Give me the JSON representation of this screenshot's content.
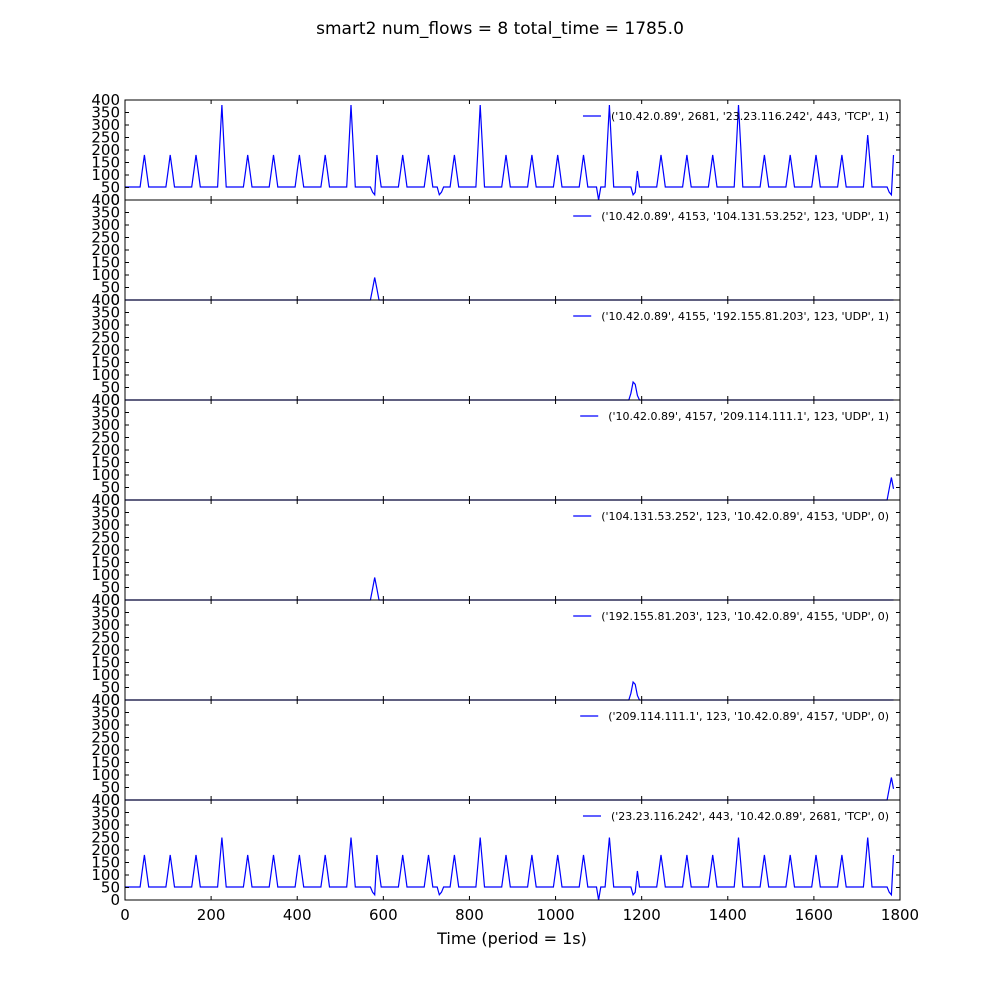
{
  "chart_data": {
    "type": "line",
    "title": "smart2 num_flows = 8 total_time = 1785.0",
    "xlabel": "Time (period = 1s)",
    "ylabel": "",
    "xlim": [
      0,
      1800
    ],
    "ylim": [
      0,
      400
    ],
    "x_ticks": [
      0,
      200,
      400,
      600,
      800,
      1000,
      1200,
      1400,
      1600,
      1800
    ],
    "y_ticks": [
      0,
      50,
      100,
      150,
      200,
      250,
      300,
      350,
      400
    ],
    "line_color": "#0000ff",
    "legend_placement": "upper right",
    "subplots": [
      {
        "name": "('10.42.0.89', 2681, '23.23.116.242', 443, 'TCP', 1)",
        "ymax": 400,
        "pattern": {
          "baseline": 52,
          "peaks": [
            [
              45,
              180
            ],
            [
              105,
              180
            ],
            [
              165,
              180
            ],
            [
              225,
              380
            ],
            [
              285,
              180
            ],
            [
              345,
              180
            ],
            [
              405,
              180
            ],
            [
              465,
              180
            ],
            [
              525,
              380
            ],
            [
              585,
              180
            ],
            [
              645,
              180
            ],
            [
              705,
              180
            ],
            [
              765,
              180
            ],
            [
              825,
              380
            ],
            [
              885,
              180
            ],
            [
              945,
              180
            ],
            [
              1005,
              180
            ],
            [
              1065,
              180
            ],
            [
              1125,
              380
            ],
            [
              1185,
              180
            ],
            [
              1245,
              180
            ],
            [
              1305,
              180
            ],
            [
              1365,
              180
            ],
            [
              1425,
              380
            ],
            [
              1485,
              180
            ],
            [
              1545,
              180
            ],
            [
              1605,
              180
            ],
            [
              1665,
              180
            ],
            [
              1725,
              260
            ],
            [
              1785,
              180
            ]
          ],
          "dips": [
            [
              578,
              0
            ],
            [
              732,
              0
            ],
            [
              1100,
              0
            ],
            [
              1182,
              0
            ],
            [
              1778,
              0
            ]
          ]
        }
      },
      {
        "name": "('10.42.0.89', 4153, '104.131.53.252', 123, 'UDP', 1)",
        "ymax": 400,
        "pattern": {
          "baseline": 0,
          "peaks": [
            [
              580,
              90
            ]
          ],
          "dips": []
        }
      },
      {
        "name": "('10.42.0.89', 4155, '192.155.81.203', 123, 'UDP', 1)",
        "ymax": 400,
        "pattern": {
          "baseline": 0,
          "peaks": [
            [
              1182,
              90
            ]
          ],
          "dips": []
        }
      },
      {
        "name": "('10.42.0.89', 4157, '209.114.111.1', 123, 'UDP', 1)",
        "ymax": 400,
        "pattern": {
          "baseline": 0,
          "peaks": [
            [
              1780,
              90
            ]
          ],
          "dips": []
        }
      },
      {
        "name": "('104.131.53.252', 123, '10.42.0.89', 4153, 'UDP', 0)",
        "ymax": 400,
        "pattern": {
          "baseline": 0,
          "peaks": [
            [
              580,
              90
            ]
          ],
          "dips": []
        }
      },
      {
        "name": "('192.155.81.203', 123, '10.42.0.89', 4155, 'UDP', 0)",
        "ymax": 400,
        "pattern": {
          "baseline": 0,
          "peaks": [
            [
              1182,
              90
            ]
          ],
          "dips": []
        }
      },
      {
        "name": "('209.114.111.1', 123, '10.42.0.89', 4157, 'UDP', 0)",
        "ymax": 400,
        "pattern": {
          "baseline": 0,
          "peaks": [
            [
              1780,
              90
            ]
          ],
          "dips": []
        }
      },
      {
        "name": "('23.23.116.242', 443, '10.42.0.89', 2681, 'TCP', 0)",
        "ymax": 400,
        "pattern": {
          "baseline": 52,
          "peaks": [
            [
              45,
              180
            ],
            [
              105,
              180
            ],
            [
              165,
              180
            ],
            [
              225,
              250
            ],
            [
              285,
              180
            ],
            [
              345,
              180
            ],
            [
              405,
              180
            ],
            [
              465,
              180
            ],
            [
              525,
              250
            ],
            [
              585,
              180
            ],
            [
              645,
              180
            ],
            [
              705,
              180
            ],
            [
              765,
              180
            ],
            [
              825,
              250
            ],
            [
              885,
              180
            ],
            [
              945,
              180
            ],
            [
              1005,
              180
            ],
            [
              1065,
              180
            ],
            [
              1125,
              250
            ],
            [
              1185,
              180
            ],
            [
              1245,
              180
            ],
            [
              1305,
              180
            ],
            [
              1365,
              180
            ],
            [
              1425,
              250
            ],
            [
              1485,
              180
            ],
            [
              1545,
              180
            ],
            [
              1605,
              180
            ],
            [
              1665,
              180
            ],
            [
              1725,
              250
            ],
            [
              1785,
              180
            ]
          ],
          "dips": [
            [
              578,
              0
            ],
            [
              732,
              0
            ],
            [
              1100,
              0
            ],
            [
              1182,
              0
            ],
            [
              1778,
              0
            ]
          ]
        }
      }
    ]
  }
}
